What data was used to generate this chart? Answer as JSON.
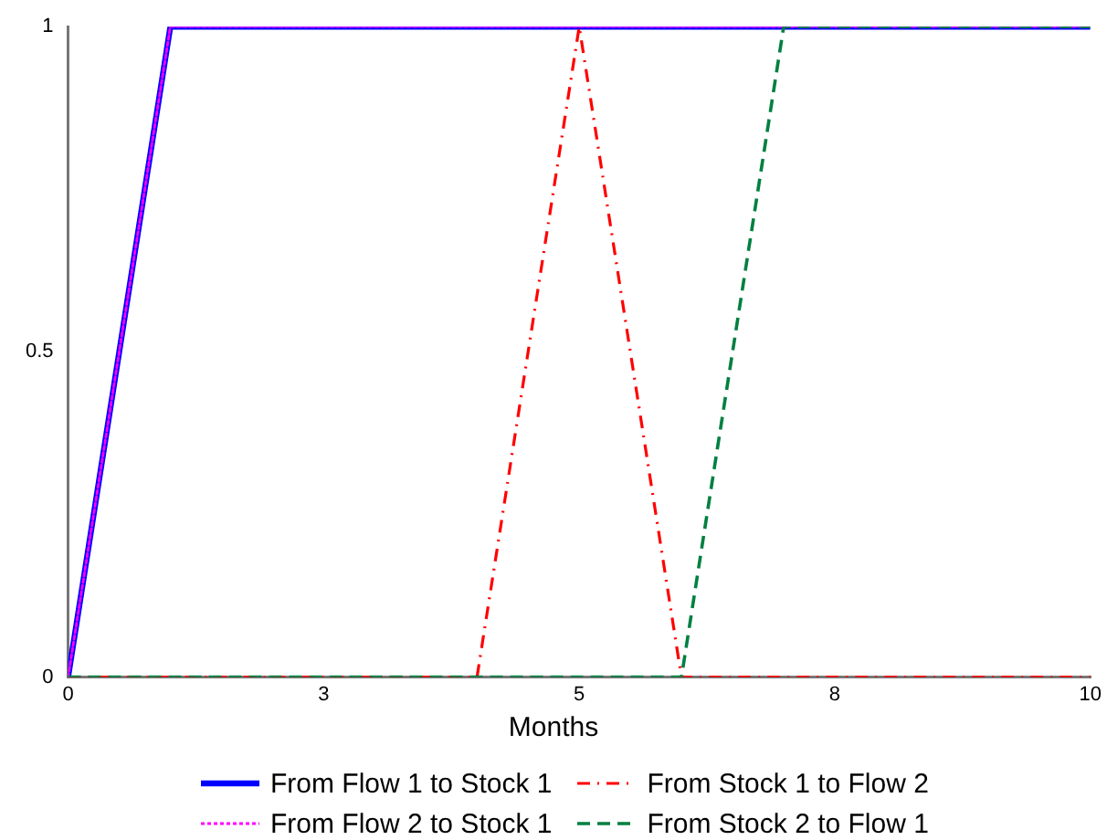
{
  "chart_data": {
    "type": "line",
    "xlabel": "Months",
    "xlim": [
      0,
      10
    ],
    "xticks": [
      0,
      {
        "value": 2.5,
        "label": "3"
      },
      5,
      {
        "value": 7.5,
        "label": "8"
      },
      10
    ],
    "ylim": [
      0,
      1
    ],
    "yticks": [
      0,
      0.5,
      1
    ],
    "grid": false,
    "legend": "bottom",
    "marker": "none",
    "series": [
      {
        "name": "From Flow 1 to Stock 1",
        "color": "#0000ff",
        "line_style": "solid",
        "x": [
          0,
          1,
          10
        ],
        "values": [
          0,
          1,
          1
        ]
      },
      {
        "name": "From Stock 1 to Flow 2",
        "color": "#ff0000",
        "line_style": "dashdot",
        "x": [
          0,
          4,
          5,
          6,
          10
        ],
        "values": [
          0,
          0,
          1,
          0,
          0
        ]
      },
      {
        "name": "From Flow 2 to Stock 1",
        "color": "#ff00ff",
        "line_style": "dotted",
        "x": [
          0,
          1,
          10
        ],
        "values": [
          0,
          1,
          1
        ]
      },
      {
        "name": "From Stock 2 to Flow 1",
        "color": "#008040",
        "line_style": "dashed",
        "x": [
          0,
          6,
          7,
          10
        ],
        "values": [
          0,
          0,
          1,
          1
        ]
      }
    ]
  }
}
